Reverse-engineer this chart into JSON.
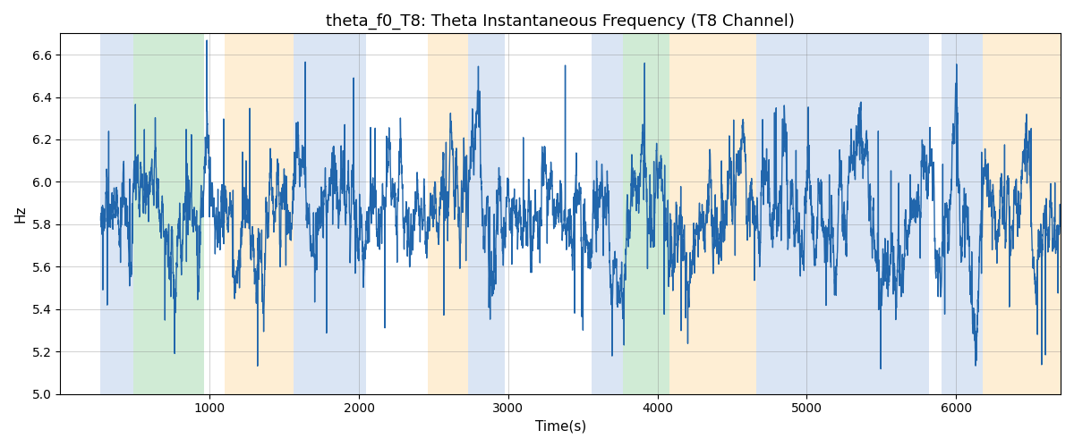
{
  "title": "theta_f0_T8: Theta Instantaneous Frequency (T8 Channel)",
  "xlabel": "Time(s)",
  "ylabel": "Hz",
  "ylim": [
    5.0,
    6.7
  ],
  "xlim": [
    0,
    6700
  ],
  "line_color": "#2166ac",
  "line_width": 1.0,
  "background_color": "#ffffff",
  "grid": true,
  "bg_bands": [
    {
      "xmin": 270,
      "xmax": 490,
      "color": "#aec6e8",
      "alpha": 0.45
    },
    {
      "xmin": 490,
      "xmax": 960,
      "color": "#98d4a3",
      "alpha": 0.45
    },
    {
      "xmin": 1100,
      "xmax": 1560,
      "color": "#fddaa0",
      "alpha": 0.45
    },
    {
      "xmin": 1560,
      "xmax": 2050,
      "color": "#aec6e8",
      "alpha": 0.45
    },
    {
      "xmin": 2460,
      "xmax": 2730,
      "color": "#fddaa0",
      "alpha": 0.45
    },
    {
      "xmin": 2730,
      "xmax": 2980,
      "color": "#aec6e8",
      "alpha": 0.45
    },
    {
      "xmin": 3560,
      "xmax": 3770,
      "color": "#aec6e8",
      "alpha": 0.45
    },
    {
      "xmin": 3770,
      "xmax": 4080,
      "color": "#98d4a3",
      "alpha": 0.45
    },
    {
      "xmin": 4080,
      "xmax": 4660,
      "color": "#fddaa0",
      "alpha": 0.45
    },
    {
      "xmin": 4660,
      "xmax": 4870,
      "color": "#aec6e8",
      "alpha": 0.45
    },
    {
      "xmin": 4870,
      "xmax": 5820,
      "color": "#aec6e8",
      "alpha": 0.45
    },
    {
      "xmin": 5900,
      "xmax": 6180,
      "color": "#aec6e8",
      "alpha": 0.45
    },
    {
      "xmin": 6180,
      "xmax": 6700,
      "color": "#fddaa0",
      "alpha": 0.45
    }
  ],
  "n_points": 6431,
  "t_start": 270,
  "t_end": 6700,
  "freq_mean": 5.82,
  "freq_std": 0.18,
  "seed": 1234
}
